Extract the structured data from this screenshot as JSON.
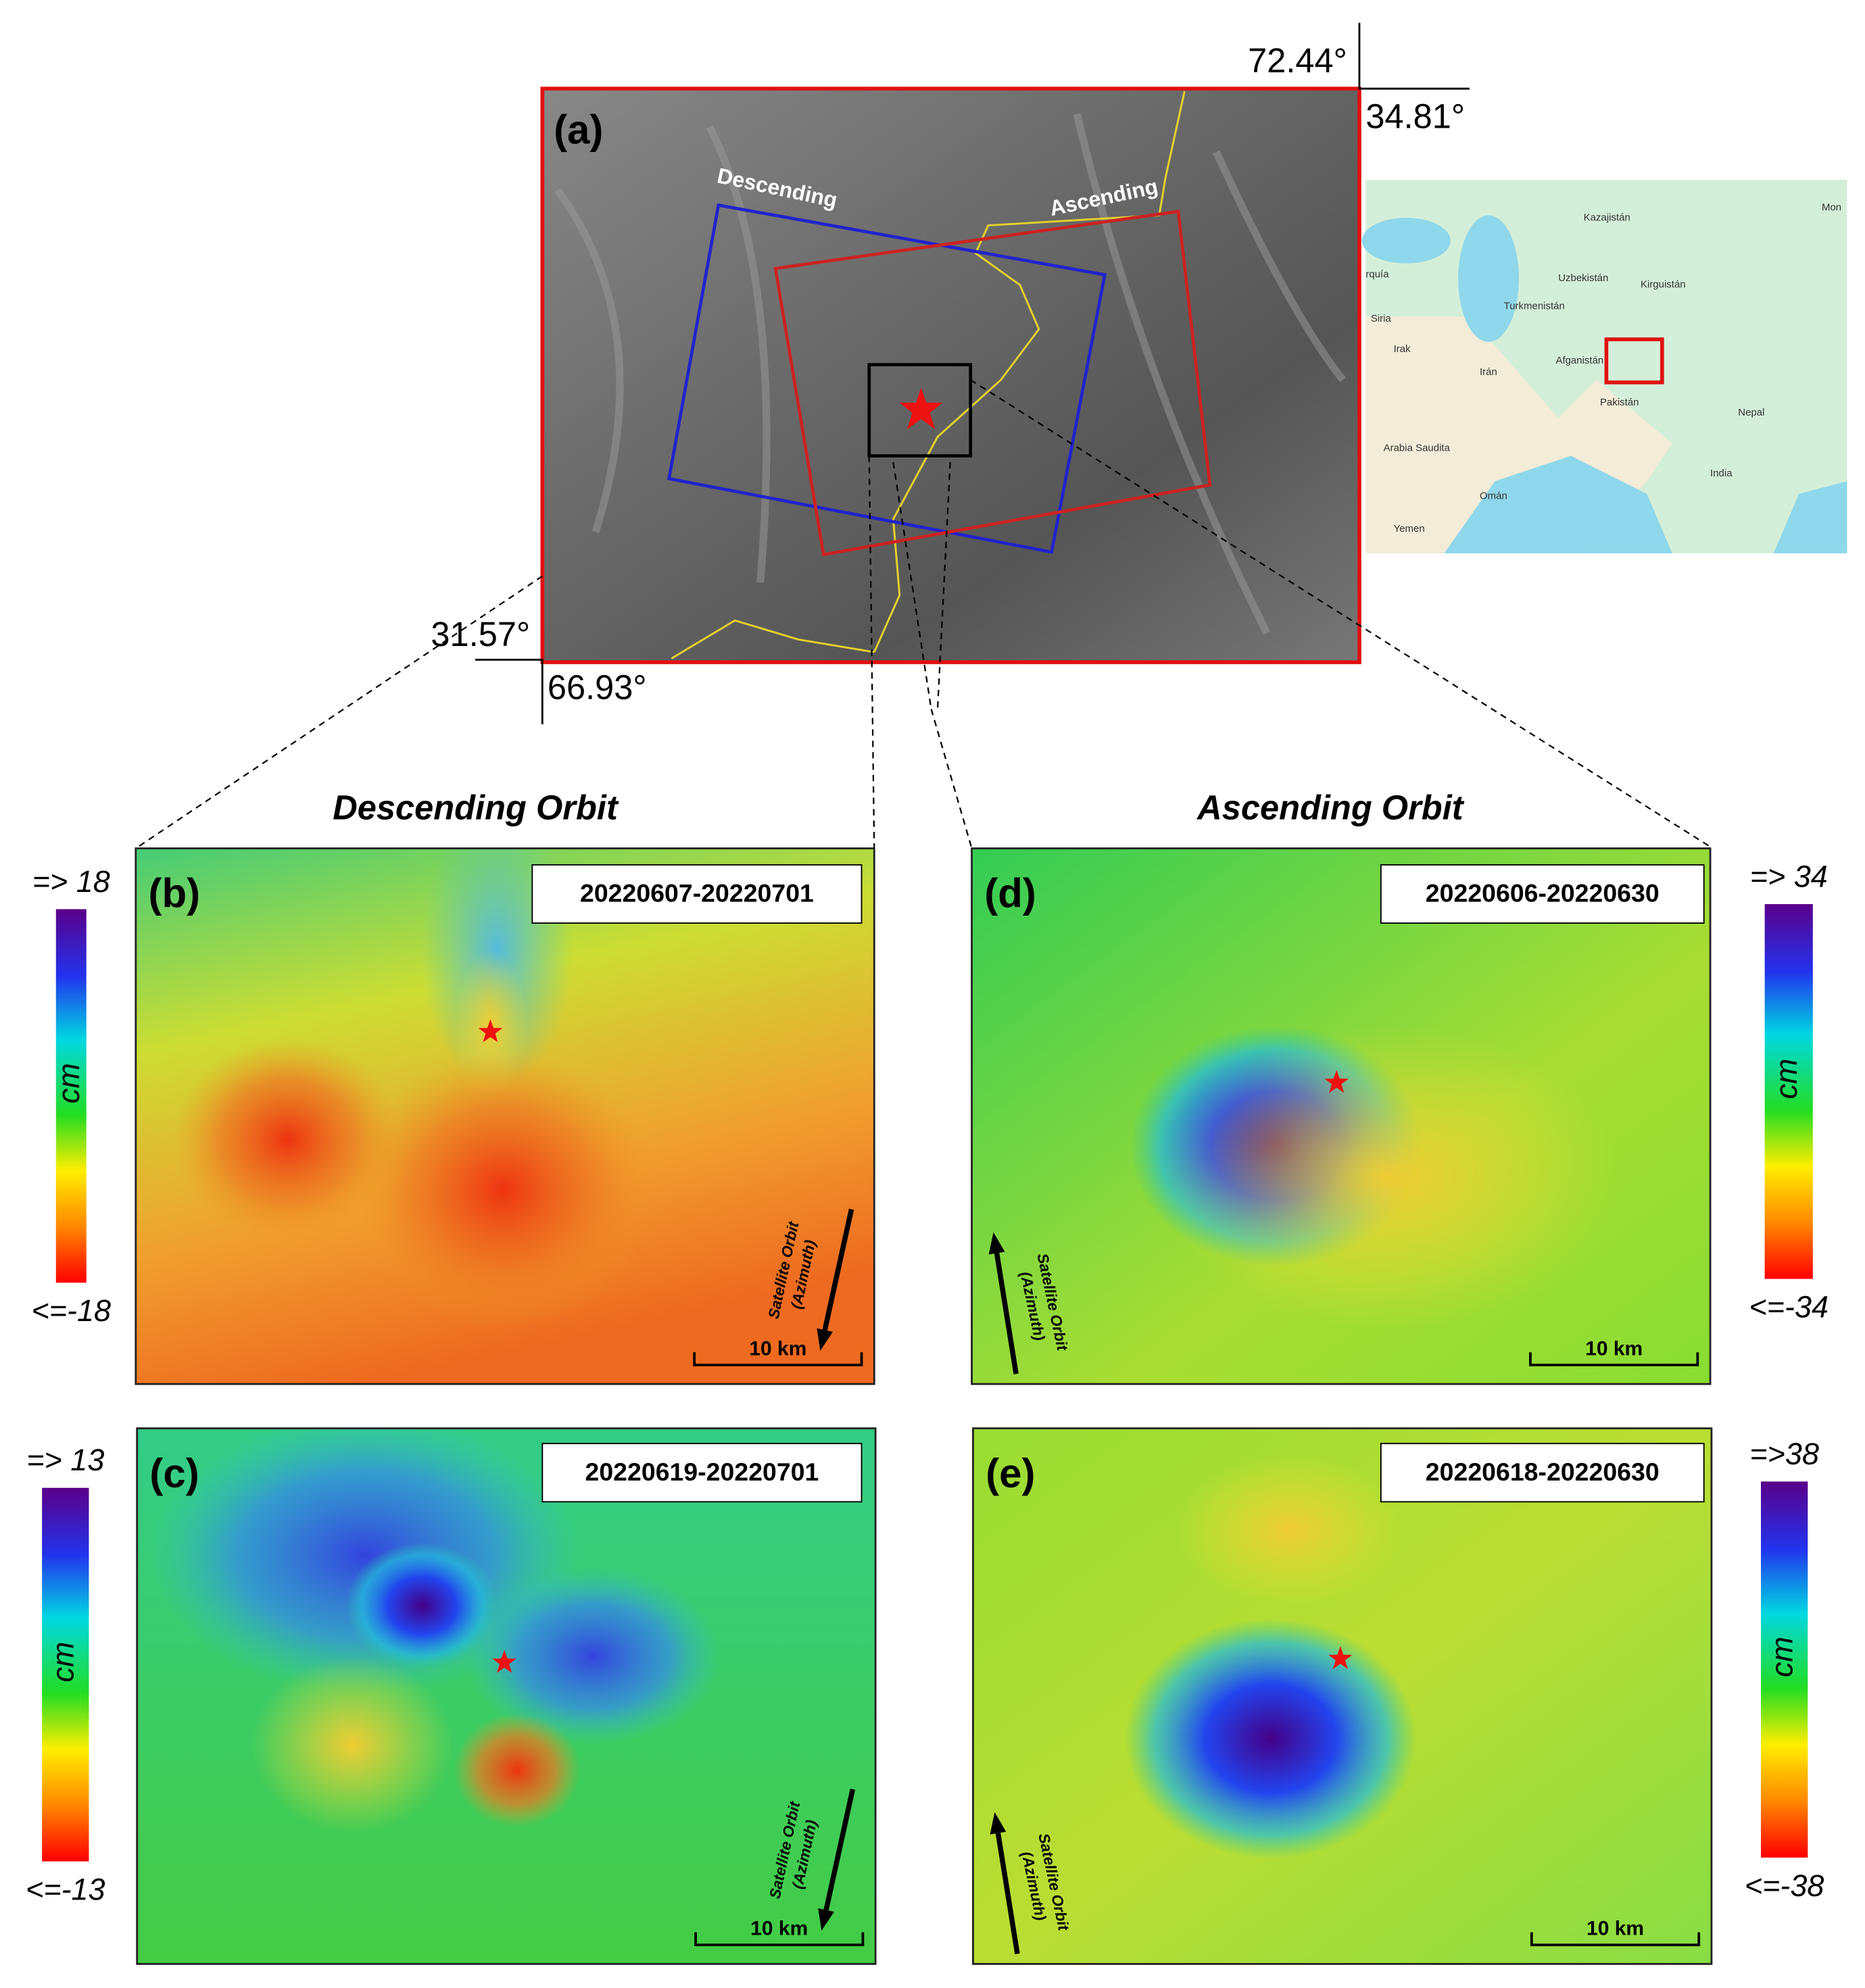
{
  "panel_a": {
    "label": "(a)",
    "descending": "Descending",
    "ascending": "Ascending",
    "coords": {
      "top_lon": "72.44°",
      "top_lat": "34.81°",
      "bottom_lat": "31.57°",
      "bottom_lon": "66.93°"
    }
  },
  "inset_map": {
    "places": [
      "Kazajistán",
      "Uzbekistán",
      "Kirguistán",
      "Turkmenistán",
      "Siria",
      "Irak",
      "Irán",
      "Afganistán",
      "Pakistán",
      "Nepal",
      "India",
      "Arabia Saudita",
      "Omán",
      "Yemen",
      "rquía",
      "Mon"
    ]
  },
  "headings": {
    "descending": "Descending Orbit",
    "ascending": "Ascending Orbit"
  },
  "panels": [
    {
      "label": "(b)",
      "dates": "20220607-20220701",
      "colorbar": {
        "max": "=> 18",
        "min": "<=-18",
        "unit": "cm"
      },
      "orbit": "Satellite Orbit",
      "azimuth": "(Azimuth)",
      "scale": "10 km"
    },
    {
      "label": "(c)",
      "dates": "20220619-20220701",
      "colorbar": {
        "max": "=> 13",
        "min": "<=-13",
        "unit": "cm"
      },
      "orbit": "Satellite Orbit",
      "azimuth": "(Azimuth)",
      "scale": "10 km"
    },
    {
      "label": "(d)",
      "dates": "20220606-20220630",
      "colorbar": {
        "max": "=> 34",
        "min": "<=-34",
        "unit": "cm"
      },
      "orbit": "Satellite Orbit",
      "azimuth": "(Azimuth)",
      "scale": "10 km"
    },
    {
      "label": "(e)",
      "dates": "20220618-20220630",
      "colorbar": {
        "max": "=>38",
        "min": "<=-38",
        "unit": "cm"
      },
      "orbit": "Satellite Orbit",
      "azimuth": "(Azimuth)",
      "scale": "10 km"
    }
  ]
}
